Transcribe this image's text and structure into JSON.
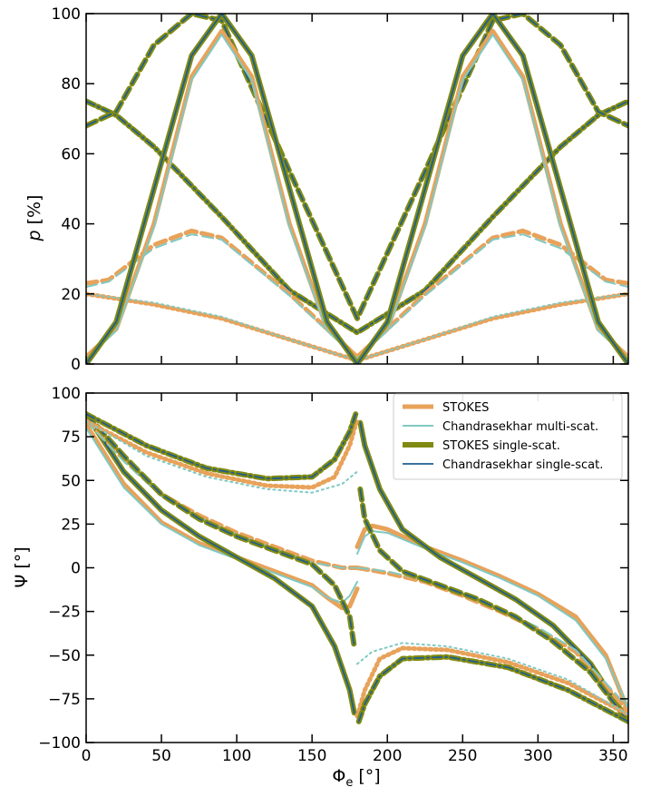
{
  "chart_data": [
    {
      "type": "line",
      "ylabel_text": "p",
      "ylabel_unit": "[%]",
      "xlim": [
        0,
        360
      ],
      "ylim": [
        0,
        100
      ],
      "x_ticks": [
        0,
        50,
        100,
        150,
        200,
        250,
        300,
        350
      ],
      "y_ticks": [
        0,
        20,
        40,
        60,
        80,
        100
      ],
      "series": [
        {
          "style": "STOKES",
          "group": "low-inclination-dotted",
          "x": [
            0,
            45,
            90,
            135,
            180,
            225,
            270,
            315,
            360
          ],
          "y": [
            20,
            17,
            13,
            7,
            1,
            7,
            13,
            17,
            20
          ]
        },
        {
          "style": "Chandrasekhar multi-scat.",
          "group": "low-inclination-dotted",
          "x": [
            0,
            45,
            90,
            135,
            180,
            225,
            270,
            315,
            360
          ],
          "y": [
            20,
            17.5,
            13.5,
            7,
            1,
            7,
            13.5,
            17.5,
            20
          ]
        },
        {
          "style": "STOKES single-scat.",
          "group": "mid-inclination-dashdot",
          "x": [
            0,
            20,
            45,
            90,
            135,
            180,
            225,
            270,
            315,
            340,
            360
          ],
          "y": [
            75,
            71,
            62,
            42,
            21,
            9,
            21,
            42,
            62,
            71,
            75
          ]
        },
        {
          "style": "Chandrasekhar single-scat.",
          "group": "mid-inclination-dashdot",
          "x": [
            0,
            20,
            45,
            90,
            135,
            180,
            225,
            270,
            315,
            340,
            360
          ],
          "y": [
            75,
            71,
            62,
            42,
            21,
            9,
            21,
            42,
            62,
            71,
            75
          ]
        },
        {
          "style": "STOKES",
          "group": "mid-dashed",
          "x": [
            0,
            15,
            45,
            70,
            90,
            135,
            180,
            225,
            270,
            290,
            315,
            345,
            360
          ],
          "y": [
            23,
            24,
            34,
            38,
            36,
            20,
            2,
            20,
            36,
            38,
            34,
            24,
            23
          ]
        },
        {
          "style": "Chandrasekhar multi-scat.",
          "group": "mid-dashed",
          "x": [
            0,
            15,
            45,
            70,
            90,
            135,
            180,
            225,
            270,
            290,
            315,
            345,
            360
          ],
          "y": [
            22,
            23.5,
            33,
            37,
            35.5,
            19.5,
            1.5,
            19.5,
            35.5,
            37,
            33,
            23.5,
            22
          ]
        },
        {
          "style": "STOKES single-scat.",
          "group": "high-dashed",
          "x": [
            0,
            20,
            45,
            70,
            90,
            135,
            180,
            225,
            270,
            290,
            315,
            340,
            360
          ],
          "y": [
            68,
            72,
            91,
            100,
            98,
            55,
            13,
            55,
            98,
            100,
            91,
            72,
            68
          ]
        },
        {
          "style": "Chandrasekhar single-scat.",
          "group": "high-dashed",
          "x": [
            0,
            20,
            45,
            70,
            90,
            135,
            180,
            225,
            270,
            290,
            315,
            340,
            360
          ],
          "y": [
            68,
            72,
            91,
            100,
            98,
            55,
            13,
            55,
            98,
            100,
            91,
            72,
            68
          ]
        },
        {
          "style": "STOKES",
          "group": "edge-solid",
          "x": [
            0,
            20,
            45,
            70,
            90,
            110,
            135,
            160,
            180,
            200,
            225,
            250,
            270,
            290,
            315,
            340,
            360
          ],
          "y": [
            2,
            10,
            40,
            82,
            95,
            82,
            40,
            10,
            2,
            10,
            40,
            82,
            95,
            82,
            40,
            10,
            2
          ]
        },
        {
          "style": "Chandrasekhar multi-scat.",
          "group": "edge-solid",
          "x": [
            0,
            20,
            45,
            70,
            90,
            110,
            135,
            160,
            180,
            200,
            225,
            250,
            270,
            290,
            315,
            340,
            360
          ],
          "y": [
            1.5,
            9.5,
            39,
            81,
            94,
            81,
            39,
            9.5,
            1.5,
            9.5,
            39,
            81,
            94,
            81,
            39,
            9.5,
            1.5
          ]
        },
        {
          "style": "STOKES single-scat.",
          "group": "edge-solid",
          "x": [
            0,
            20,
            45,
            70,
            90,
            110,
            135,
            160,
            180,
            200,
            225,
            250,
            270,
            290,
            315,
            340,
            360
          ],
          "y": [
            0,
            12,
            50,
            88,
            100,
            88,
            50,
            12,
            0,
            12,
            50,
            88,
            100,
            88,
            50,
            12,
            0
          ]
        },
        {
          "style": "Chandrasekhar single-scat.",
          "group": "edge-solid",
          "x": [
            0,
            20,
            45,
            70,
            90,
            110,
            135,
            160,
            180,
            200,
            225,
            250,
            270,
            290,
            315,
            340,
            360
          ],
          "y": [
            0,
            12,
            50,
            88,
            100,
            88,
            50,
            12,
            0,
            12,
            50,
            88,
            100,
            88,
            50,
            12,
            0
          ]
        }
      ]
    },
    {
      "type": "line",
      "ylabel": "Ψ [°]",
      "xlabel_main": "Φ",
      "xlabel_sub": "e",
      "xlabel_unit": "[°]",
      "xlim": [
        0,
        360
      ],
      "ylim": [
        -100,
        100
      ],
      "x_ticks": [
        0,
        50,
        100,
        150,
        200,
        250,
        300,
        350
      ],
      "y_ticks": [
        -100,
        -75,
        -50,
        -25,
        0,
        25,
        50,
        75,
        100
      ],
      "legend_position": "upper-right",
      "legend": [
        {
          "label": "STOKES",
          "color": "#E8A25A"
        },
        {
          "label": "Chandrasekhar multi-scat.",
          "color": "#7FC9C3"
        },
        {
          "label": "STOKES single-scat.",
          "color": "#808A12"
        },
        {
          "label": "Chandrasekhar single-scat.",
          "color": "#1F5E8F"
        }
      ],
      "series": [
        {
          "style": "STOKES",
          "group": "solid",
          "x": [
            0,
            25,
            50,
            75,
            100,
            125,
            150,
            160,
            170,
            175,
            180
          ],
          "y": [
            82,
            48,
            26,
            14,
            6,
            -2,
            -10,
            -17,
            -23,
            -22,
            -12
          ]
        },
        {
          "style": "Chandrasekhar multi-scat.",
          "group": "solid",
          "x": [
            0,
            25,
            50,
            75,
            100,
            125,
            150,
            160,
            170,
            175,
            180
          ],
          "y": [
            80,
            46,
            25,
            13,
            5,
            -3,
            -11,
            -17,
            -20,
            -16,
            -8
          ]
        },
        {
          "style": "STOKES",
          "group": "solid",
          "x": [
            180,
            185,
            190,
            200,
            225,
            250,
            275,
            300,
            325,
            345,
            360
          ],
          "y": [
            12,
            22,
            24,
            22,
            12,
            4,
            -5,
            -15,
            -28,
            -50,
            -82
          ]
        },
        {
          "style": "Chandrasekhar multi-scat.",
          "group": "solid",
          "x": [
            180,
            185,
            190,
            200,
            225,
            250,
            275,
            300,
            325,
            345,
            360
          ],
          "y": [
            8,
            18,
            21,
            20,
            11,
            3,
            -6,
            -16,
            -30,
            -52,
            -80
          ]
        },
        {
          "style": "STOKES single-scat.",
          "group": "solid",
          "x": [
            0,
            25,
            50,
            75,
            100,
            125,
            150,
            165,
            175,
            178
          ],
          "y": [
            88,
            55,
            33,
            18,
            6,
            -6,
            -22,
            -45,
            -70,
            -83
          ]
        },
        {
          "style": "Chandrasekhar single-scat.",
          "group": "solid",
          "x": [
            0,
            25,
            50,
            75,
            100,
            125,
            150,
            165,
            175,
            178
          ],
          "y": [
            88,
            55,
            33,
            18,
            6,
            -6,
            -22,
            -45,
            -70,
            -83
          ]
        },
        {
          "style": "STOKES single-scat.",
          "group": "solid",
          "x": [
            182,
            185,
            195,
            210,
            235,
            260,
            285,
            310,
            335,
            360
          ],
          "y": [
            83,
            70,
            45,
            22,
            6,
            -6,
            -18,
            -33,
            -55,
            -88
          ]
        },
        {
          "style": "Chandrasekhar single-scat.",
          "group": "solid",
          "x": [
            182,
            185,
            195,
            210,
            235,
            260,
            285,
            310,
            335,
            360
          ],
          "y": [
            83,
            70,
            45,
            22,
            6,
            -6,
            -18,
            -33,
            -55,
            -88
          ]
        },
        {
          "style": "STOKES",
          "group": "dashed",
          "x": [
            0,
            25,
            50,
            75,
            100,
            125,
            150,
            170,
            180
          ],
          "y": [
            85,
            62,
            42,
            30,
            20,
            12,
            4,
            0,
            0
          ]
        },
        {
          "style": "Chandrasekhar multi-scat.",
          "group": "dashed",
          "x": [
            0,
            25,
            50,
            75,
            100,
            125,
            150,
            170,
            180
          ],
          "y": [
            84,
            61,
            41,
            29,
            19,
            11,
            3,
            0,
            0
          ]
        },
        {
          "style": "STOKES",
          "group": "dashed",
          "x": [
            180,
            200,
            225,
            250,
            275,
            300,
            325,
            360
          ],
          "y": [
            0,
            -3,
            -8,
            -16,
            -25,
            -35,
            -48,
            -82
          ]
        },
        {
          "style": "Chandrasekhar multi-scat.",
          "group": "dashed",
          "x": [
            180,
            200,
            225,
            250,
            275,
            300,
            325,
            360
          ],
          "y": [
            0,
            -2,
            -7,
            -15,
            -24,
            -34,
            -47,
            -80
          ]
        },
        {
          "style": "STOKES single-scat.",
          "group": "dashed",
          "x": [
            0,
            25,
            50,
            75,
            100,
            125,
            150,
            165,
            175,
            178
          ],
          "y": [
            88,
            64,
            42,
            28,
            18,
            10,
            2,
            -10,
            -28,
            -45
          ]
        },
        {
          "style": "Chandrasekhar single-scat.",
          "group": "dashed",
          "x": [
            0,
            25,
            50,
            75,
            100,
            125,
            150,
            165,
            175,
            178
          ],
          "y": [
            88,
            64,
            42,
            28,
            18,
            10,
            2,
            -10,
            -28,
            -45
          ]
        },
        {
          "style": "STOKES single-scat.",
          "group": "dashed",
          "x": [
            182,
            185,
            195,
            210,
            235,
            260,
            285,
            310,
            335,
            360
          ],
          "y": [
            45,
            28,
            10,
            -2,
            -10,
            -18,
            -28,
            -42,
            -60,
            -88
          ]
        },
        {
          "style": "Chandrasekhar single-scat.",
          "group": "dashed",
          "x": [
            182,
            185,
            195,
            210,
            235,
            260,
            285,
            310,
            335,
            360
          ],
          "y": [
            45,
            28,
            10,
            -2,
            -10,
            -18,
            -28,
            -42,
            -60,
            -88
          ]
        },
        {
          "style": "STOKES",
          "group": "dotted",
          "x": [
            0,
            40,
            80,
            120,
            150,
            165,
            175,
            180
          ],
          "y": [
            84,
            66,
            54,
            47,
            46,
            52,
            70,
            85
          ]
        },
        {
          "style": "Chandrasekhar multi-scat.",
          "group": "dotted",
          "x": [
            0,
            40,
            80,
            120,
            150,
            170,
            180
          ],
          "y": [
            84,
            64,
            52,
            45,
            43,
            48,
            55
          ]
        },
        {
          "style": "STOKES",
          "group": "dotted",
          "x": [
            180,
            185,
            195,
            210,
            240,
            280,
            320,
            360
          ],
          "y": [
            -85,
            -70,
            -52,
            -46,
            -47,
            -54,
            -66,
            -84
          ]
        },
        {
          "style": "Chandrasekhar multi-scat.",
          "group": "dotted",
          "x": [
            180,
            190,
            210,
            240,
            280,
            320,
            360
          ],
          "y": [
            -55,
            -48,
            -43,
            -45,
            -52,
            -64,
            -84
          ]
        },
        {
          "style": "STOKES single-scat.",
          "group": "dashdot",
          "x": [
            0,
            40,
            80,
            120,
            150,
            165,
            175,
            179
          ],
          "y": [
            88,
            70,
            57,
            51,
            52,
            62,
            78,
            88
          ]
        },
        {
          "style": "Chandrasekhar single-scat.",
          "group": "dashdot",
          "x": [
            0,
            40,
            80,
            120,
            150,
            165,
            175,
            179
          ],
          "y": [
            88,
            70,
            57,
            51,
            52,
            62,
            78,
            88
          ]
        },
        {
          "style": "STOKES single-scat.",
          "group": "dashdot",
          "x": [
            181,
            185,
            195,
            210,
            240,
            280,
            320,
            360
          ],
          "y": [
            -88,
            -78,
            -62,
            -52,
            -51,
            -57,
            -70,
            -88
          ]
        },
        {
          "style": "Chandrasekhar single-scat.",
          "group": "dashdot",
          "x": [
            181,
            185,
            195,
            210,
            240,
            280,
            320,
            360
          ],
          "y": [
            -88,
            -78,
            -62,
            -52,
            -51,
            -57,
            -70,
            -88
          ]
        }
      ]
    }
  ]
}
